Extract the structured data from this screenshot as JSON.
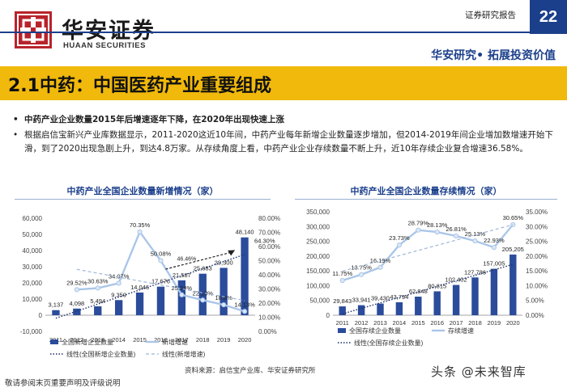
{
  "header": {
    "logo_cn": "华安证券",
    "logo_en": "HUAAN SECURITIES",
    "report_type": "证券研究报告",
    "page_number": "22",
    "slogan": "华安研究• 拓展投资价值"
  },
  "title": "2.1中药：中国医药产业重要组成",
  "bullets": [
    "中药产业企业数量2015年后增速逐年下降，在2020年出现快速上涨",
    "根据启信宝新兴产业库数据显示，2011-2020这近10年间，中药产业每年新增企业数量逐步增加，但2014-2019年间企业增加数增速开始下滑，到了2020出现急剧上升，到达4.8万家。从存续角度上看，中药产业企业存续数量不断上升，近10年存续企业复合增速36.58%。"
  ],
  "chart_data": [
    {
      "type": "bar",
      "title": "中药产业全国企业数量新增情况（家）",
      "categories": [
        "2011",
        "2012",
        "2013",
        "2014",
        "2015",
        "2016",
        "2017",
        "2018",
        "2019",
        "2020"
      ],
      "series": [
        {
          "name": "全国新增企业数量",
          "type": "bar",
          "axis": "left",
          "values": [
            3137,
            4098,
            5494,
            9359,
            14046,
            17676,
            21587,
            25683,
            29300,
            48140
          ]
        },
        {
          "name": "新增增速",
          "type": "line",
          "axis": "right",
          "values": [
            null,
            29.52,
            30.63,
            34.07,
            70.35,
            50.08,
            25.84,
            22.13,
            18.8,
            14.13
          ]
        }
      ],
      "bar_labels": [
        "3,137",
        "4,098",
        "5,494",
        "9,359",
        "14,046",
        "17,676",
        "21,587",
        "25,683",
        "29,300",
        "48,140"
      ],
      "line_labels": [
        "",
        "29.52%",
        "30.63%",
        "34.07%",
        "70.35%",
        "50.08%",
        "25.84%",
        "22.13%",
        "18.8%",
        "14.13%"
      ],
      "annotations": [
        "64.30%",
        "46.46%"
      ],
      "ylim": [
        -10000,
        60000
      ],
      "y_ticks": [
        "60,000",
        "50,000",
        "40,000",
        "30,000",
        "20,000",
        "10,000",
        "0",
        "-10,000"
      ],
      "y2lim": [
        0,
        80
      ],
      "y2_ticks": [
        "80.00%",
        "70.00%",
        "60.00%",
        "50.00%",
        "40.00%",
        "30.00%",
        "20.00%",
        "10.00%",
        "0.00%"
      ],
      "legend": [
        "全国新增企业数量",
        "新增增速",
        "线性(全国新增企业数量)",
        "线性(新增增速)"
      ]
    },
    {
      "type": "bar",
      "title": "中药产业全国企业数量存续情况（家）",
      "categories": [
        "2011",
        "2012",
        "2013",
        "2014",
        "2015",
        "2016",
        "2017",
        "2018",
        "2019",
        "2020"
      ],
      "series": [
        {
          "name": "全国存续企业数量",
          "type": "bar",
          "axis": "left",
          "values": [
            29843,
            33941,
            39430,
            43794,
            62848,
            80815,
            102402,
            127786,
            157005,
            205205
          ]
        },
        {
          "name": "存续增速",
          "type": "line",
          "axis": "right",
          "values": [
            11.75,
            13.75,
            16.19,
            23.73,
            28.79,
            28.13,
            26.81,
            25.13,
            22.93,
            30.65
          ]
        }
      ],
      "bar_labels": [
        "29,843",
        "33,941",
        "39,430",
        "43,794",
        "62,848",
        "80,815",
        "102,402",
        "127,786",
        "157,005",
        "205,205"
      ],
      "line_labels": [
        "11.75%",
        "13.75%",
        "16.19%",
        "23.73%",
        "28.79%",
        "28.13%",
        "26.81%",
        "25.13%",
        "22.93%",
        "30.65%"
      ],
      "ylim": [
        0,
        350000
      ],
      "y_ticks": [
        "350,000",
        "300,000",
        "250,000",
        "200,000",
        "150,000",
        "100,000",
        "50,000",
        "0"
      ],
      "y2lim": [
        0,
        35
      ],
      "y2_ticks": [
        "35.00%",
        "30.00%",
        "25.00%",
        "20.00%",
        "15.00%",
        "10.00%",
        "5.00%",
        "0.00%"
      ],
      "legend": [
        "全国存续企业数量",
        "存续增速",
        "线性(全国存续企业数量)"
      ]
    }
  ],
  "source": "资料来源：启信宝产业库、华安证券研究所",
  "disclaimer": "敬请参阅末页重要声明及评级说明",
  "watermark": "头条 @未来智库",
  "colors": {
    "bar": "#2b4c9b",
    "line": "#aac6e8",
    "trend": "#1b2f6b",
    "title_bar": "#f0b90b",
    "brand_blue": "#1b3f8b",
    "brand_red": "#b8232b"
  }
}
